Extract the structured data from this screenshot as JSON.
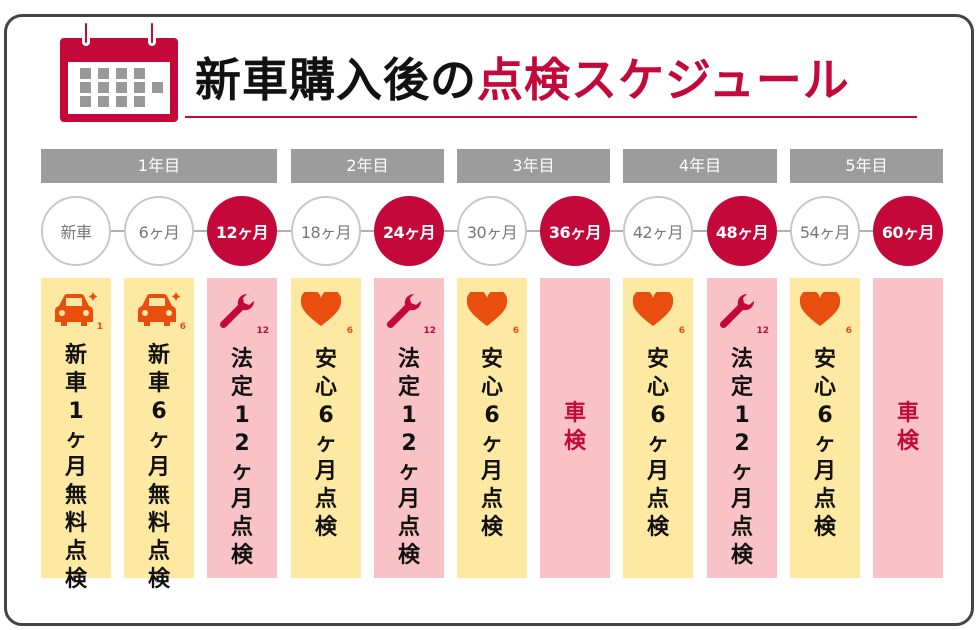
{
  "title": {
    "main": "新車購入後の",
    "accent": "点検スケジュール"
  },
  "colors": {
    "accent": "#c4083a",
    "orange": "#e94e0f",
    "gray": "#9c9c9c",
    "yellow": "#fde9a1",
    "pink": "#f8c2c7"
  },
  "years": [
    "1年目",
    "2年目",
    "3年目",
    "4年目",
    "5年目"
  ],
  "milestones": [
    "新車",
    "6ヶ月",
    "12ヶ月",
    "18ヶ月",
    "24ヶ月",
    "30ヶ月",
    "36ヶ月",
    "42ヶ月",
    "48ヶ月",
    "54ヶ月",
    "60ヶ月"
  ],
  "cards": [
    {
      "icon": "car-icon",
      "badge": "1",
      "text": "新車1ヶ月無料点検"
    },
    {
      "icon": "car-icon",
      "badge": "6",
      "text": "新車6ヶ月無料点検"
    },
    {
      "icon": "wrench-icon",
      "badge": "12",
      "text": "法定12ヶ月点検"
    },
    {
      "icon": "heart-icon",
      "badge": "6",
      "text": "安心6ヶ月点検"
    },
    {
      "icon": "wrench-icon",
      "badge": "12",
      "text": "法定12ヶ月点検"
    },
    {
      "icon": "heart-icon",
      "badge": "6",
      "text": "安心6ヶ月点検"
    },
    {
      "icon": "",
      "badge": "",
      "text": "車検"
    },
    {
      "icon": "heart-icon",
      "badge": "6",
      "text": "安心6ヶ月点検"
    },
    {
      "icon": "wrench-icon",
      "badge": "12",
      "text": "法定12ヶ月点検"
    },
    {
      "icon": "heart-icon",
      "badge": "6",
      "text": "安心6ヶ月点検"
    },
    {
      "icon": "",
      "badge": "",
      "text": "車検"
    }
  ]
}
